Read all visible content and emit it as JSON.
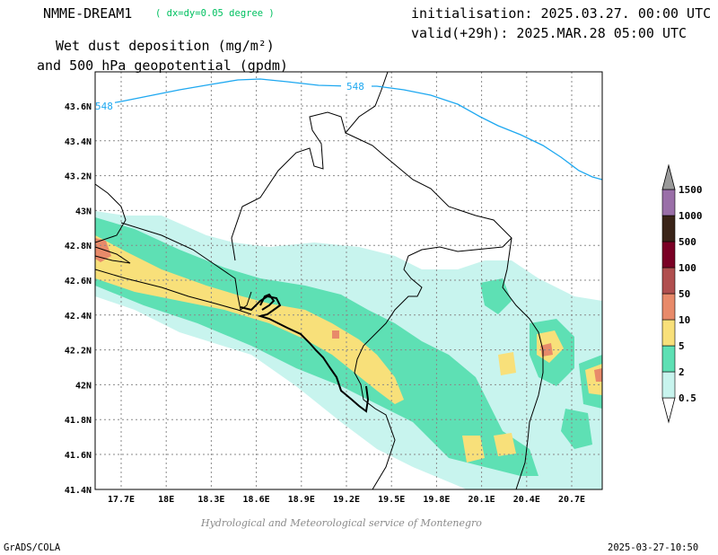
{
  "header": {
    "model": "NMME-DREAM1",
    "resolution": "( dx=dy=0.05 degree )",
    "init": "initialisation: 2025.03.27. 00:00 UTC",
    "valid": "valid(+29h): 2025.MAR.28 05:00 UTC",
    "variable_line1": "Wet dust deposition (mg/m²)",
    "variable_line2": "and 500 hPa geopotential (gpdm)"
  },
  "map": {
    "lat_labels": [
      "43.6N",
      "43.4N",
      "43.2N",
      "43N",
      "42.8N",
      "42.6N",
      "42.4N",
      "42.2N",
      "42N",
      "41.8N",
      "41.6N",
      "41.4N"
    ],
    "lon_labels": [
      "17.7E",
      "18E",
      "18.3E",
      "18.6E",
      "18.9E",
      "19.2E",
      "19.5E",
      "19.8E",
      "20.1E",
      "20.4E",
      "20.7E"
    ],
    "contour_label": "548",
    "contour_label_left": "548"
  },
  "legend": {
    "values": [
      "1500",
      "1000",
      "500",
      "100",
      "50",
      "10",
      "5",
      "2",
      "0.5"
    ],
    "colors": [
      "#9a6fa8",
      "#3a2418",
      "#7a0025",
      "#b04f4f",
      "#e88a6a",
      "#f8e07a",
      "#5ee0b4",
      "#c8f4ee"
    ]
  },
  "footer": {
    "credit": "Hydrological and Meteorological service of Montenegro",
    "left": "GrADS/COLA",
    "right": "2025-03-27-10:50"
  }
}
